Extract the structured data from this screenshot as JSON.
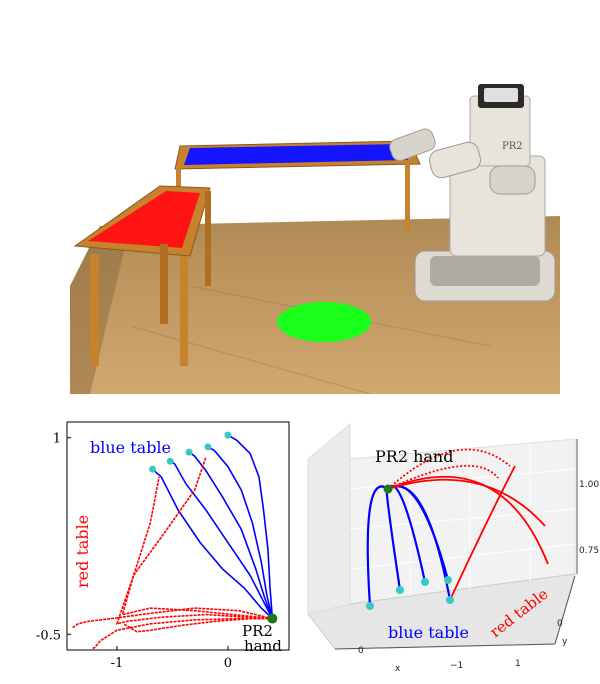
{
  "photo": {
    "robot_label": "PR2",
    "colors": {
      "floor": "#c49a64",
      "floor_dark": "#8a6a3e",
      "wall": "#ffffff",
      "wood": "#c8822e",
      "red_table_top": "#ff1414",
      "blue_table_top": "#1414ff",
      "green_spot": "#19ff19",
      "robot": "#e8e4dc"
    }
  },
  "chart_data": [
    {
      "type": "line",
      "view": "2d",
      "xlim": [
        -1.45,
        0.55
      ],
      "ylim": [
        -0.62,
        1.12
      ],
      "xticks": [
        {
          "v": -1,
          "label": "-1"
        },
        {
          "v": 0,
          "label": "0"
        }
      ],
      "yticks": [
        {
          "v": 1,
          "label": "1"
        },
        {
          "v": -0.5,
          "label": "-0.5"
        }
      ],
      "annotations": [
        {
          "text": "blue table",
          "color": "#0000ff"
        },
        {
          "text": "red table",
          "color": "#ff0000"
        },
        {
          "text": "PR2",
          "color": "#000000"
        },
        {
          "text": "hand",
          "color": "#000000"
        }
      ],
      "series": [
        {
          "color": "#0000ff",
          "values": [
            [
              0.4,
              -0.38
            ],
            [
              0.3,
              -0.3
            ],
            [
              0.15,
              -0.15
            ],
            [
              -0.05,
              0.0
            ],
            [
              -0.25,
              0.2
            ],
            [
              -0.45,
              0.45
            ],
            [
              -0.6,
              0.7
            ],
            [
              -0.68,
              0.76
            ]
          ]
        },
        {
          "color": "#0000ff",
          "values": [
            [
              0.4,
              -0.38
            ],
            [
              0.32,
              -0.25
            ],
            [
              0.2,
              -0.05
            ],
            [
              0.0,
              0.2
            ],
            [
              -0.2,
              0.45
            ],
            [
              -0.38,
              0.65
            ],
            [
              -0.48,
              0.8
            ],
            [
              -0.52,
              0.82
            ]
          ]
        },
        {
          "color": "#0000ff",
          "values": [
            [
              0.4,
              -0.38
            ],
            [
              0.33,
              -0.22
            ],
            [
              0.25,
              0.0
            ],
            [
              0.12,
              0.3
            ],
            [
              -0.05,
              0.55
            ],
            [
              -0.2,
              0.75
            ],
            [
              -0.3,
              0.86
            ],
            [
              -0.35,
              0.89
            ]
          ]
        },
        {
          "color": "#0000ff",
          "values": [
            [
              0.4,
              -0.38
            ],
            [
              0.35,
              -0.2
            ],
            [
              0.3,
              0.05
            ],
            [
              0.22,
              0.35
            ],
            [
              0.12,
              0.6
            ],
            [
              0.0,
              0.78
            ],
            [
              -0.12,
              0.9
            ],
            [
              -0.18,
              0.93
            ]
          ]
        },
        {
          "color": "#0000ff",
          "values": [
            [
              0.4,
              -0.38
            ],
            [
              0.38,
              -0.15
            ],
            [
              0.36,
              0.15
            ],
            [
              0.32,
              0.45
            ],
            [
              0.28,
              0.7
            ],
            [
              0.2,
              0.88
            ],
            [
              0.08,
              0.98
            ],
            [
              0.0,
              1.02
            ]
          ]
        },
        {
          "color": "#ff0000",
          "values": [
            [
              0.4,
              -0.38
            ],
            [
              0.1,
              -0.32
            ],
            [
              -0.3,
              -0.3
            ],
            [
              -0.7,
              -0.34
            ],
            [
              -1.05,
              -0.38
            ],
            [
              -1.25,
              -0.4
            ],
            [
              -1.35,
              -0.42
            ],
            [
              -1.4,
              -0.45
            ]
          ]
        },
        {
          "color": "#ff0000",
          "values": [
            [
              0.4,
              -0.38
            ],
            [
              0.1,
              -0.38
            ],
            [
              -0.3,
              -0.39
            ],
            [
              -0.7,
              -0.42
            ],
            [
              -1.0,
              -0.47
            ],
            [
              -1.15,
              -0.55
            ],
            [
              -1.2,
              -0.6
            ],
            [
              -1.22,
              -0.61
            ]
          ]
        },
        {
          "color": "#ff0000",
          "values": [
            [
              0.4,
              -0.38
            ],
            [
              0.2,
              -0.38
            ],
            [
              -0.1,
              -0.4
            ],
            [
              -0.4,
              -0.43
            ],
            [
              -0.7,
              -0.47
            ],
            [
              -0.82,
              -0.48
            ],
            [
              -0.88,
              -0.45
            ],
            [
              -0.94,
              -0.42
            ]
          ]
        },
        {
          "color": "#ff0000",
          "values": [
            [
              0.4,
              -0.38
            ],
            [
              -0.2,
              -0.35
            ],
            [
              -0.6,
              -0.37
            ],
            [
              -0.9,
              -0.4
            ],
            [
              -1.0,
              -0.42
            ],
            [
              -0.85,
              -0.05
            ],
            [
              -0.7,
              0.35
            ],
            [
              -0.62,
              0.7
            ]
          ]
        },
        {
          "color": "#ff0000",
          "values": [
            [
              0.4,
              -0.38
            ],
            [
              -0.3,
              -0.32
            ],
            [
              -0.7,
              -0.3
            ],
            [
              -0.95,
              -0.35
            ],
            [
              -0.85,
              -0.05
            ],
            [
              -0.55,
              0.3
            ],
            [
              -0.3,
              0.6
            ],
            [
              -0.2,
              0.85
            ]
          ]
        }
      ]
    },
    {
      "type": "line",
      "view": "3d",
      "zticks": [
        {
          "v": 1.0,
          "label": "1.00"
        },
        {
          "v": 0.75,
          "label": "0.75"
        }
      ],
      "xticks": [
        {
          "v": 0,
          "label": "0"
        },
        {
          "v": -1,
          "label": "−1"
        }
      ],
      "yticks": [
        {
          "v": 0,
          "label": "0"
        },
        {
          "v": 1,
          "label": "1"
        }
      ],
      "xlabel": "x",
      "ylabel": "y",
      "annotations": [
        {
          "text": "PR2 hand",
          "color": "#000000"
        },
        {
          "text": "blue table",
          "color": "#0000ff"
        },
        {
          "text": "red table",
          "color": "#ff0000"
        }
      ]
    }
  ]
}
